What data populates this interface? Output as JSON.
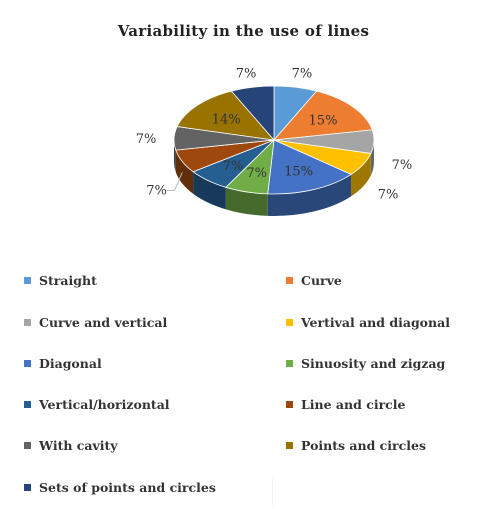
{
  "chart_data": {
    "type": "pie",
    "title": "Variability in the use of lines",
    "categories": [
      "Straight",
      "Curve",
      "Curve and vertical",
      "Vertival and diagonal",
      "Diagonal",
      "Sinuosity and zigzag",
      "Vertical/horizontal",
      "Line and circle",
      "With cavity",
      "Points and circles",
      "Sets of points and circles"
    ],
    "values": [
      7,
      15,
      7,
      7,
      15,
      7,
      7,
      7,
      7,
      14,
      7
    ],
    "data_labels": [
      "7%",
      "15%",
      "7%",
      "7%",
      "15%",
      "7%",
      "7%",
      "7%",
      "7%",
      "14%",
      "7%"
    ],
    "colors": [
      "#5B9BD5",
      "#ED7D31",
      "#A5A5A5",
      "#FFC000",
      "#4472C4",
      "#70AD47",
      "#255E91",
      "#9E480E",
      "#636363",
      "#997300",
      "#264478"
    ],
    "legend_placement": "bottom",
    "three_d": true
  }
}
